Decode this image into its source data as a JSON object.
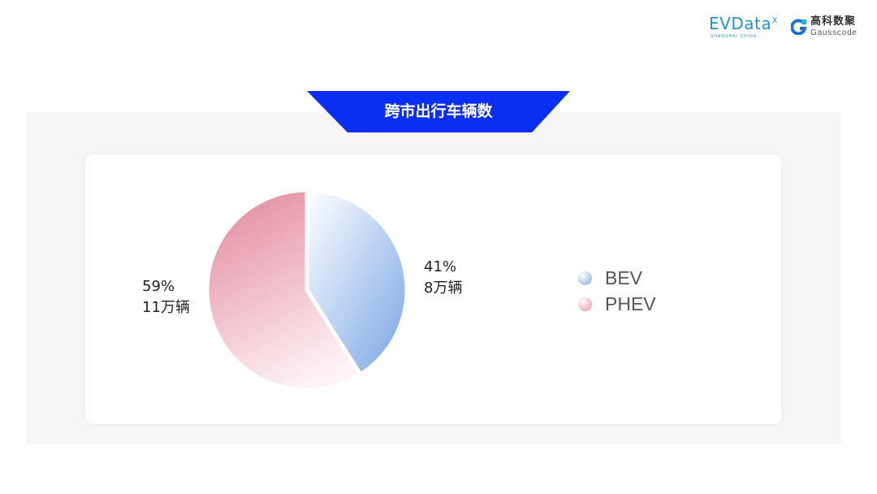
{
  "logos": {
    "evdata": {
      "text": "EVData",
      "x_mark": "x",
      "sub": "SHANGHAI CHINA"
    },
    "gausscode": {
      "cn": "高科数聚",
      "en": "Gausscode"
    }
  },
  "colors": {
    "banner": "#0a2ef2",
    "panel": "#f7f5f5",
    "bev_start": "#ffffff",
    "bev_end": "#78a4e4",
    "phev_start": "#e48ca0",
    "phev_end": "#fdf3f5"
  },
  "chart_data": {
    "type": "pie",
    "title": "跨市出行车辆数",
    "legend_position": "right",
    "slices": [
      {
        "name": "BEV",
        "percent": 41,
        "count_label": "8万辆",
        "percent_label": "41%"
      },
      {
        "name": "PHEV",
        "percent": 59,
        "count_label": "11万辆",
        "percent_label": "59%"
      }
    ]
  }
}
